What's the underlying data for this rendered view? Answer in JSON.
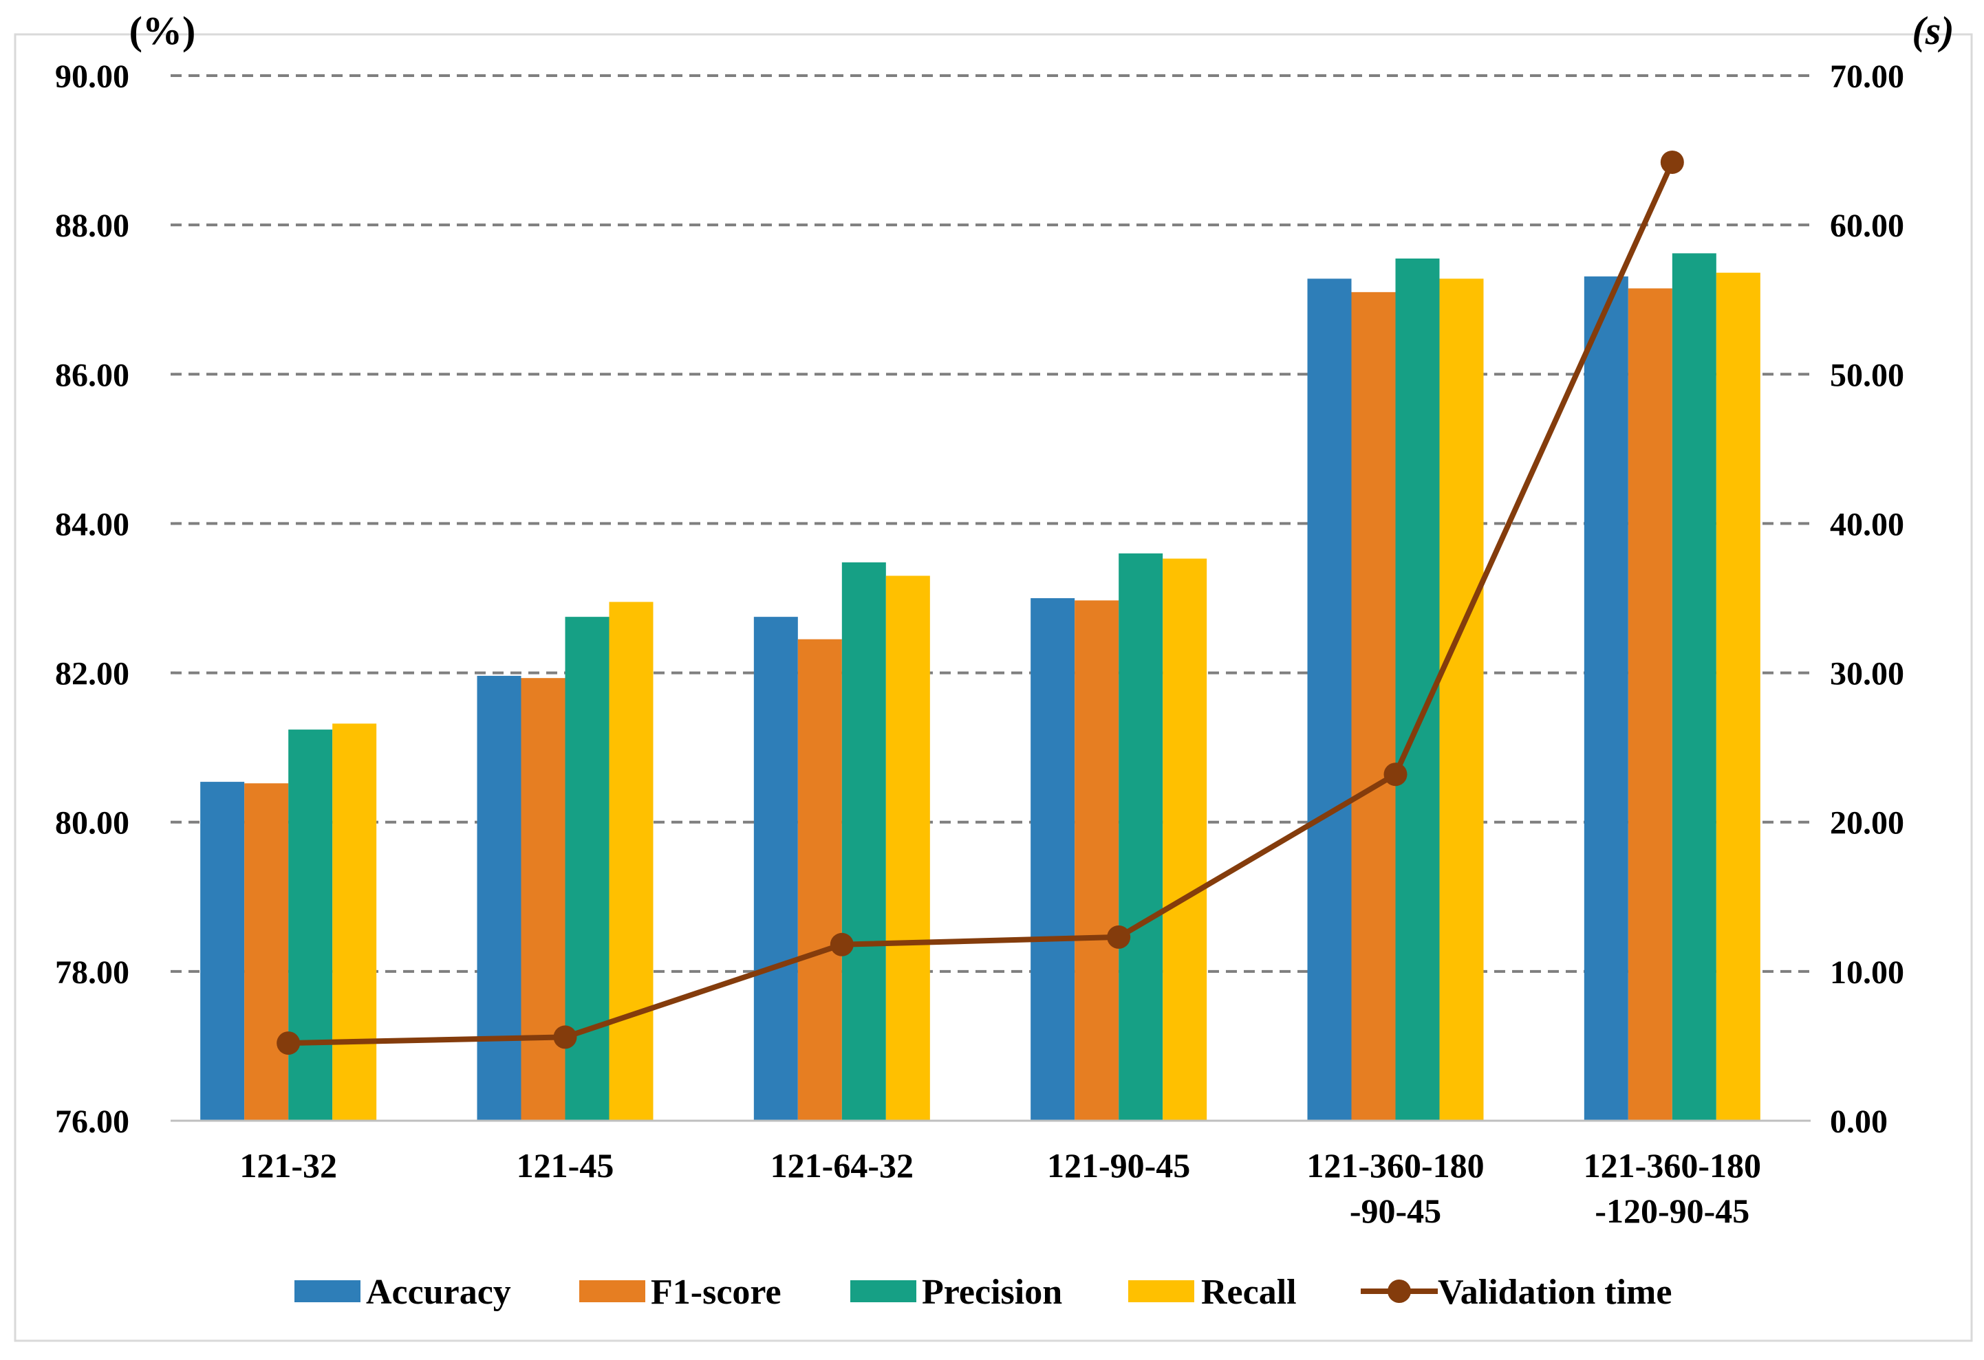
{
  "chart_data": {
    "type": "bar",
    "categories": [
      [
        "121-32"
      ],
      [
        "121-45"
      ],
      [
        "121-64-32"
      ],
      [
        "121-90-45"
      ],
      [
        "121-360-180",
        "-90-45"
      ],
      [
        "121-360-180",
        "-120-90-45"
      ]
    ],
    "series": [
      {
        "name": "Accuracy",
        "color": "#2E7EB8",
        "values": [
          80.54,
          81.96,
          82.75,
          83.0,
          87.28,
          87.31
        ]
      },
      {
        "name": "F1-score",
        "color": "#E67E22",
        "values": [
          80.52,
          81.93,
          82.45,
          82.97,
          87.1,
          87.15
        ]
      },
      {
        "name": "Precision",
        "color": "#16A085",
        "values": [
          81.24,
          82.75,
          83.48,
          83.6,
          87.55,
          87.62
        ]
      },
      {
        "name": "Recall",
        "color": "#FFC000",
        "values": [
          81.32,
          82.95,
          83.3,
          83.53,
          87.28,
          87.36
        ]
      }
    ],
    "line_series": {
      "name": "Validation time",
      "color": "#843C0C",
      "values": [
        5.2,
        5.6,
        11.8,
        12.3,
        23.2,
        64.2
      ]
    },
    "y_left": {
      "label": "(%)",
      "min": 76,
      "max": 90,
      "step": 2,
      "ticks": [
        "76.00",
        "78.00",
        "80.00",
        "82.00",
        "84.00",
        "86.00",
        "88.00",
        "90.00"
      ]
    },
    "y_right": {
      "label": "(s)",
      "min": 0,
      "max": 70,
      "step": 10,
      "ticks": [
        "0.00",
        "10.00",
        "20.00",
        "30.00",
        "40.00",
        "50.00",
        "60.00",
        "70.00"
      ]
    },
    "grid": "dashed-horizontal",
    "legend_position": "bottom"
  }
}
